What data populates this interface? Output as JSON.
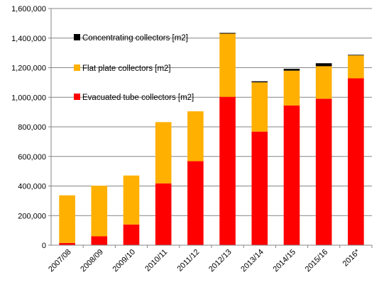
{
  "chart_data": {
    "type": "bar",
    "stacked": true,
    "categories": [
      "2007/08",
      "2008/09",
      "2009/10",
      "2010/11",
      "2011/12",
      "2012/13",
      "2013/14",
      "2014/15",
      "2015/16",
      "2016*"
    ],
    "series": [
      {
        "name": "Evacuated tube collectors [m2]",
        "color": "#ff0000",
        "values": [
          15000,
          60000,
          140000,
          418000,
          568000,
          1003000,
          768000,
          945000,
          990000,
          1128000
        ]
      },
      {
        "name": "Flat plate collectors [m2]",
        "color": "#ffb000",
        "values": [
          322000,
          342000,
          331000,
          414000,
          337000,
          427000,
          333000,
          235000,
          220000,
          155000
        ]
      },
      {
        "name": "Concentrating collectors [m2]",
        "color": "#000000",
        "values": [
          0,
          0,
          0,
          0,
          0,
          5000,
          7000,
          12000,
          20000,
          4000
        ]
      }
    ],
    "y_ticks": [
      "0",
      "200,000",
      "400,000",
      "600,000",
      "800,000",
      "1,000,000",
      "1,200,000",
      "1,400,000",
      "1,600,000"
    ],
    "ylim": [
      0,
      1600000
    ],
    "grid": true,
    "legend_position": "top-left",
    "title": "",
    "xlabel": "",
    "ylabel": ""
  }
}
